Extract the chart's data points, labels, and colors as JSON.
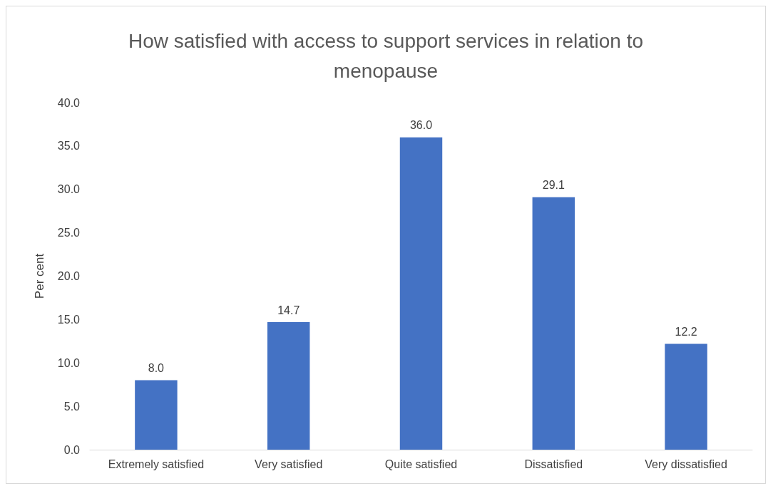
{
  "chart_data": {
    "type": "bar",
    "title": "How satisfied with access to support services in relation to\nmenopause",
    "ylabel": "Per cent",
    "categories": [
      "Extremely satisfied",
      "Very satisfied",
      "Quite satisfied",
      "Dissatisfied",
      "Very dissatisfied"
    ],
    "values": [
      8.0,
      14.7,
      36.0,
      29.1,
      12.2
    ],
    "value_labels": [
      "8.0",
      "14.7",
      "36.0",
      "29.1",
      "12.2"
    ],
    "color": "#4472c4",
    "ylim": [
      0,
      40
    ],
    "yticks": [
      {
        "value": 0,
        "label": "0.0"
      },
      {
        "value": 5,
        "label": "5.0"
      },
      {
        "value": 10,
        "label": "10.0"
      },
      {
        "value": 15,
        "label": "15.0"
      },
      {
        "value": 20,
        "label": "20.0"
      },
      {
        "value": 25,
        "label": "25.0"
      },
      {
        "value": 30,
        "label": "30.0"
      },
      {
        "value": 35,
        "label": "35.0"
      },
      {
        "value": 40,
        "label": "40.0"
      }
    ],
    "grid": false
  }
}
